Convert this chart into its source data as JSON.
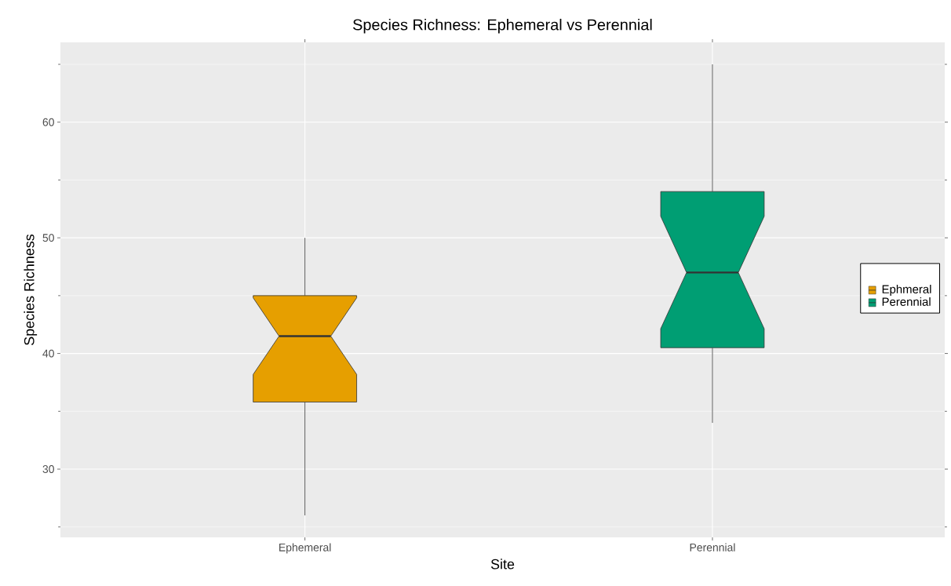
{
  "chart_data": {
    "type": "box",
    "title": "Species Richness: Ephemeral vs Perennial",
    "xlabel": "Site",
    "ylabel": "Species Richness",
    "categories": [
      "Ephemeral",
      "Perennial"
    ],
    "series": [
      {
        "name": "Ephmeral",
        "color": "#e69f00",
        "boxes": [
          {
            "low": 26,
            "q1": 35.8,
            "median": 41.5,
            "q3": 45,
            "high": 50
          },
          null
        ]
      },
      {
        "name": "Perennial",
        "color": "#009e73",
        "boxes": [
          null,
          {
            "low": 34,
            "q1": 40.5,
            "median": 47,
            "q3": 54,
            "high": 65
          }
        ]
      }
    ],
    "ylim": [
      24.1,
      66.9
    ],
    "yticks": [
      {
        "value": 25,
        "label": null
      },
      30,
      {
        "value": 35,
        "label": null
      },
      40,
      {
        "value": 45,
        "label": null
      },
      50,
      {
        "value": 55,
        "label": null
      },
      60,
      {
        "value": 65,
        "label": null
      }
    ],
    "grid": true,
    "legend": "right"
  }
}
